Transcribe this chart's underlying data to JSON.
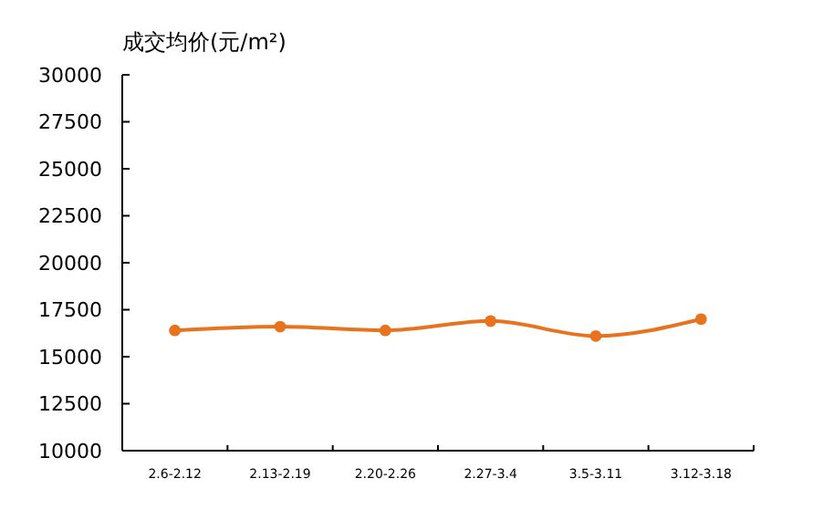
{
  "chart_data": {
    "type": "line",
    "title": "成交均价(元/m²)",
    "categories": [
      "2.6-2.12",
      "2.13-2.19",
      "2.20-2.26",
      "2.27-3.4",
      "3.5-3.11",
      "3.12-3.18"
    ],
    "series": [
      {
        "color": "#e8731e",
        "values": [
          16400,
          16600,
          16400,
          16900,
          16100,
          17000
        ]
      }
    ],
    "ylim": [
      10000,
      30000
    ],
    "yticks": [
      10000,
      12500,
      15000,
      17500,
      20000,
      22500,
      25000,
      27500,
      30000
    ],
    "grid": false,
    "marker": "circle",
    "line_style": "solid"
  }
}
